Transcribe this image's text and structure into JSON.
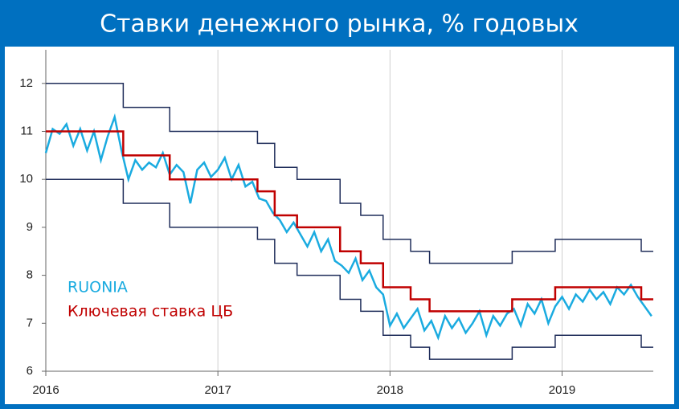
{
  "chart_data": {
    "type": "line",
    "title": "Ставки денежного рынка, % годовых",
    "xlim": [
      2016,
      2019.53
    ],
    "xticks": [
      2016,
      2017,
      2018,
      2019
    ],
    "ylim": [
      6,
      12.7
    ],
    "yticks": [
      6,
      7,
      8,
      9,
      10,
      11,
      12
    ],
    "grid": true,
    "series": [
      {
        "color": "#1f2d5a",
        "x": [
          2016,
          2016.45,
          2016.45,
          2016.72,
          2016.72,
          2017.23,
          2017.23,
          2017.33,
          2017.33,
          2017.46,
          2017.46,
          2017.71,
          2017.71,
          2017.83,
          2017.83,
          2017.96,
          2017.96,
          2018.12,
          2018.12,
          2018.23,
          2018.23,
          2018.71,
          2018.71,
          2018.96,
          2018.96,
          2019.46,
          2019.46,
          2019.53
        ],
        "values": [
          12,
          12,
          11.5,
          11.5,
          11,
          11,
          10.75,
          10.75,
          10.25,
          10.25,
          10,
          10,
          9.5,
          9.5,
          9.25,
          9.25,
          8.75,
          8.75,
          8.5,
          8.5,
          8.25,
          8.25,
          8.5,
          8.5,
          8.75,
          8.75,
          8.5,
          8.5
        ]
      },
      {
        "color": "#1f2d5a",
        "x": [
          2016,
          2016.45,
          2016.45,
          2016.72,
          2016.72,
          2017.23,
          2017.23,
          2017.33,
          2017.33,
          2017.46,
          2017.46,
          2017.71,
          2017.71,
          2017.83,
          2017.83,
          2017.96,
          2017.96,
          2018.12,
          2018.12,
          2018.23,
          2018.23,
          2018.71,
          2018.71,
          2018.96,
          2018.96,
          2019.46,
          2019.46,
          2019.53
        ],
        "values": [
          10,
          10,
          9.5,
          9.5,
          9,
          9,
          8.75,
          8.75,
          8.25,
          8.25,
          8,
          8,
          7.5,
          7.5,
          7.25,
          7.25,
          6.75,
          6.75,
          6.5,
          6.5,
          6.25,
          6.25,
          6.5,
          6.5,
          6.75,
          6.75,
          6.5,
          6.5
        ]
      },
      {
        "name": "RUONIA",
        "color": "#1aabe0",
        "x": [
          2016,
          2016.04,
          2016.08,
          2016.12,
          2016.16,
          2016.2,
          2016.24,
          2016.28,
          2016.32,
          2016.36,
          2016.4,
          2016.44,
          2016.48,
          2016.52,
          2016.56,
          2016.6,
          2016.64,
          2016.68,
          2016.72,
          2016.76,
          2016.8,
          2016.84,
          2016.88,
          2016.92,
          2016.96,
          2017,
          2017.04,
          2017.08,
          2017.12,
          2017.16,
          2017.2,
          2017.24,
          2017.28,
          2017.32,
          2017.36,
          2017.4,
          2017.44,
          2017.48,
          2017.52,
          2017.56,
          2017.6,
          2017.64,
          2017.68,
          2017.72,
          2017.76,
          2017.8,
          2017.84,
          2017.88,
          2017.92,
          2017.96,
          2018,
          2018.04,
          2018.08,
          2018.12,
          2018.16,
          2018.2,
          2018.24,
          2018.28,
          2018.32,
          2018.36,
          2018.4,
          2018.44,
          2018.48,
          2018.52,
          2018.56,
          2018.6,
          2018.64,
          2018.68,
          2018.72,
          2018.76,
          2018.8,
          2018.84,
          2018.88,
          2018.92,
          2018.96,
          2019,
          2019.04,
          2019.08,
          2019.12,
          2019.16,
          2019.2,
          2019.24,
          2019.28,
          2019.32,
          2019.36,
          2019.4,
          2019.44,
          2019.48,
          2019.52
        ],
        "values": [
          10.55,
          11.05,
          10.95,
          11.15,
          10.7,
          11.05,
          10.6,
          11.0,
          10.4,
          10.9,
          11.3,
          10.6,
          10.0,
          10.4,
          10.2,
          10.35,
          10.25,
          10.55,
          10.1,
          10.3,
          10.15,
          9.5,
          10.2,
          10.35,
          10.05,
          10.2,
          10.45,
          10.0,
          10.3,
          9.85,
          9.95,
          9.6,
          9.55,
          9.3,
          9.15,
          8.9,
          9.1,
          8.85,
          8.6,
          8.9,
          8.5,
          8.75,
          8.3,
          8.2,
          8.05,
          8.35,
          7.9,
          8.1,
          7.75,
          7.6,
          6.95,
          7.2,
          6.9,
          7.1,
          7.3,
          6.85,
          7.05,
          6.7,
          7.15,
          6.9,
          7.1,
          6.8,
          7.0,
          7.25,
          6.75,
          7.15,
          6.95,
          7.2,
          7.3,
          6.95,
          7.4,
          7.2,
          7.5,
          7.0,
          7.35,
          7.55,
          7.3,
          7.6,
          7.45,
          7.7,
          7.5,
          7.65,
          7.4,
          7.75,
          7.6,
          7.8,
          7.55,
          7.35,
          7.15
        ]
      },
      {
        "name": "Ключевая ставка ЦБ",
        "color": "#c00000",
        "x": [
          2016,
          2016.45,
          2016.45,
          2016.72,
          2016.72,
          2017.23,
          2017.23,
          2017.33,
          2017.33,
          2017.46,
          2017.46,
          2017.71,
          2017.71,
          2017.83,
          2017.83,
          2017.96,
          2017.96,
          2018.12,
          2018.12,
          2018.23,
          2018.23,
          2018.71,
          2018.71,
          2018.96,
          2018.96,
          2019.46,
          2019.46,
          2019.53
        ],
        "values": [
          11,
          11,
          10.5,
          10.5,
          10,
          10,
          9.75,
          9.75,
          9.25,
          9.25,
          9,
          9,
          8.5,
          8.5,
          8.25,
          8.25,
          7.75,
          7.75,
          7.5,
          7.5,
          7.25,
          7.25,
          7.5,
          7.5,
          7.75,
          7.75,
          7.5,
          7.5
        ]
      }
    ]
  }
}
